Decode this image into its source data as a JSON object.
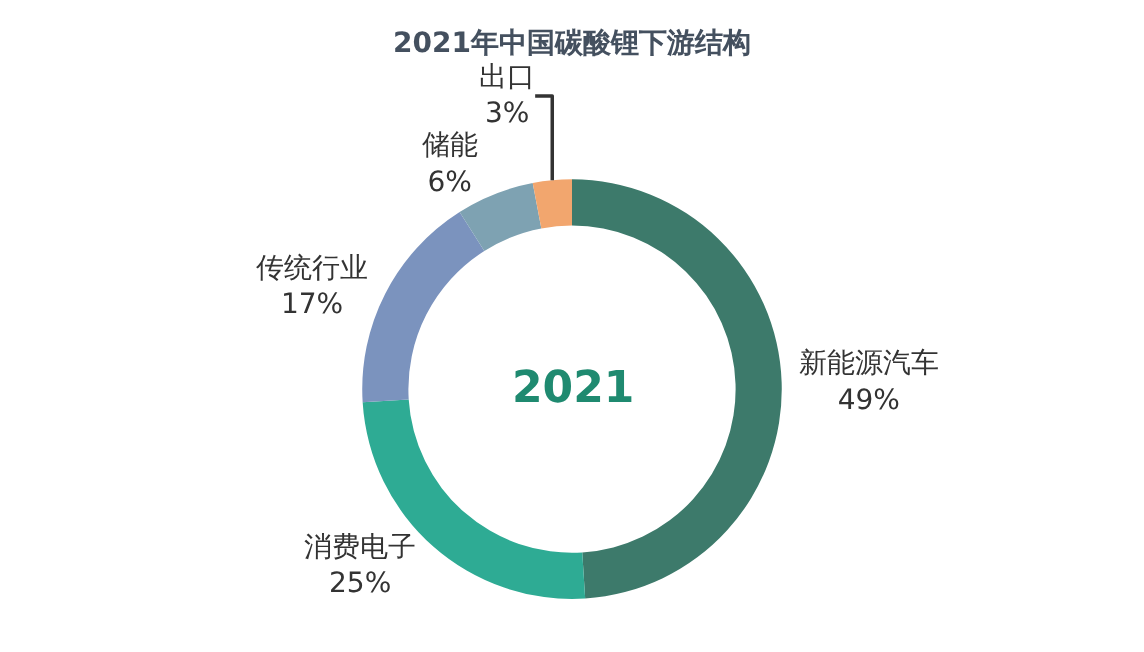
{
  "chart_data": {
    "type": "donut",
    "title": "2021年中国碳酸锂下游结构",
    "categories": [
      "新能源汽车",
      "消费电子",
      "传统行业",
      "储能",
      "出口"
    ],
    "values": [
      49,
      25,
      17,
      6,
      3
    ],
    "value_labels": [
      "49%",
      "25%",
      "17%",
      "6%",
      "3%"
    ],
    "colors": [
      "#3d7a6b",
      "#2eab94",
      "#7b93be",
      "#7ea2b2",
      "#f2a66e"
    ],
    "annotations": [
      "2021"
    ],
    "legend": false
  }
}
